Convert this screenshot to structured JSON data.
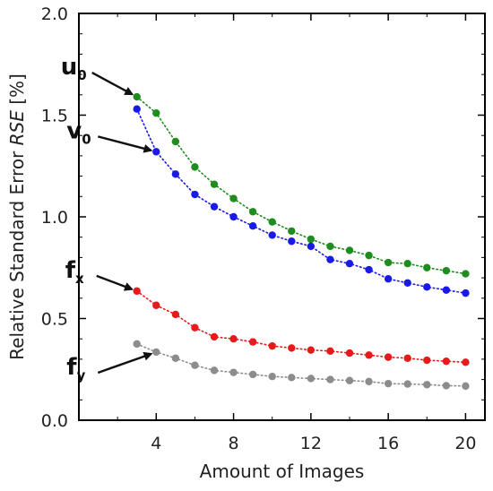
{
  "chart_data": {
    "type": "line",
    "title": "",
    "xlabel": "Amount of Images",
    "ylabel_prefix": "Relative Standard Error ",
    "ylabel_symbol": "RSE",
    "ylabel_suffix": " [%]",
    "xlim": [
      0,
      21
    ],
    "ylim": [
      0.0,
      2.0
    ],
    "xticks": [
      4,
      8,
      12,
      16,
      20
    ],
    "yticks": [
      "0.0",
      "0.5",
      "1.0",
      "1.5",
      "2.0"
    ],
    "grid": false,
    "x": [
      3,
      4,
      5,
      6,
      7,
      8,
      9,
      10,
      11,
      12,
      13,
      14,
      15,
      16,
      17,
      18,
      19,
      20
    ],
    "series": [
      {
        "name": "u",
        "subscript": "0",
        "color": "#1e8c1e",
        "values": [
          1.59,
          1.51,
          1.37,
          1.245,
          1.16,
          1.09,
          1.025,
          0.975,
          0.93,
          0.89,
          0.855,
          0.835,
          0.81,
          0.775,
          0.77,
          0.75,
          0.735,
          0.72
        ]
      },
      {
        "name": "v",
        "subscript": "0",
        "color": "#1a1ae6",
        "values": [
          1.53,
          1.32,
          1.21,
          1.11,
          1.05,
          1.0,
          0.955,
          0.91,
          0.88,
          0.855,
          0.79,
          0.77,
          0.74,
          0.695,
          0.675,
          0.655,
          0.64,
          0.625
        ]
      },
      {
        "name": "f",
        "subscript": "x",
        "color": "#e61a1a",
        "values": [
          0.635,
          0.565,
          0.52,
          0.455,
          0.41,
          0.4,
          0.385,
          0.365,
          0.355,
          0.345,
          0.34,
          0.33,
          0.32,
          0.31,
          0.305,
          0.295,
          0.29,
          0.285
        ]
      },
      {
        "name": "f",
        "subscript": "y",
        "color": "#8c8c8c",
        "values": [
          0.375,
          0.335,
          0.305,
          0.27,
          0.245,
          0.235,
          0.225,
          0.215,
          0.21,
          0.205,
          0.2,
          0.195,
          0.19,
          0.18,
          0.178,
          0.175,
          0.17,
          0.168
        ]
      }
    ],
    "annotations": [
      {
        "series": 0,
        "anchor_x": 3,
        "text": "u",
        "sub": "0"
      },
      {
        "series": 1,
        "anchor_x": 4,
        "text": "v",
        "sub": "0"
      },
      {
        "series": 2,
        "anchor_x": 3,
        "text": "f",
        "sub": "x"
      },
      {
        "series": 3,
        "anchor_x": 4,
        "text": "f",
        "sub": "y"
      }
    ]
  }
}
